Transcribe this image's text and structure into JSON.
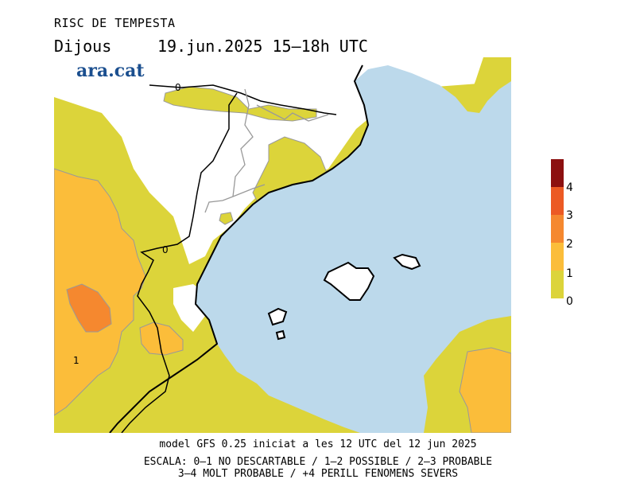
{
  "header": {
    "title": "RISC DE TEMPESTA",
    "day": "Dijous",
    "datetime": "19.jun.2025 15–18h UTC"
  },
  "brand": {
    "logo_text": "ara.cat",
    "color": "#1b4f8f"
  },
  "map": {
    "contour_labels": [
      "0",
      "0",
      "1"
    ],
    "colors": {
      "sea": "#bcd9eb",
      "level_0_1": "#dcd43a",
      "level_1_2": "#fbbd3a",
      "level_2_3": "#f5882f",
      "level_3_4": "#ec5a24",
      "level_4_plus": "#8c1010",
      "no_data_land": "#ffffff"
    }
  },
  "legend": {
    "labels": [
      "4",
      "3",
      "2",
      "1",
      "0"
    ],
    "colors": [
      "#8c1010",
      "#ec5a24",
      "#f5882f",
      "#fbbd3a",
      "#dcd43a"
    ]
  },
  "footer": {
    "model_line": "model GFS 0.25 iniciat a les 12 UTC del 12 jun 2025",
    "scale_line_1": "ESCALA: 0–1 NO DESCARTABLE / 1–2 POSSIBLE / 2–3 PROBABLE",
    "scale_line_2": "3–4 MOLT PROBABLE / +4 PERILL FENOMENS SEVERS"
  }
}
